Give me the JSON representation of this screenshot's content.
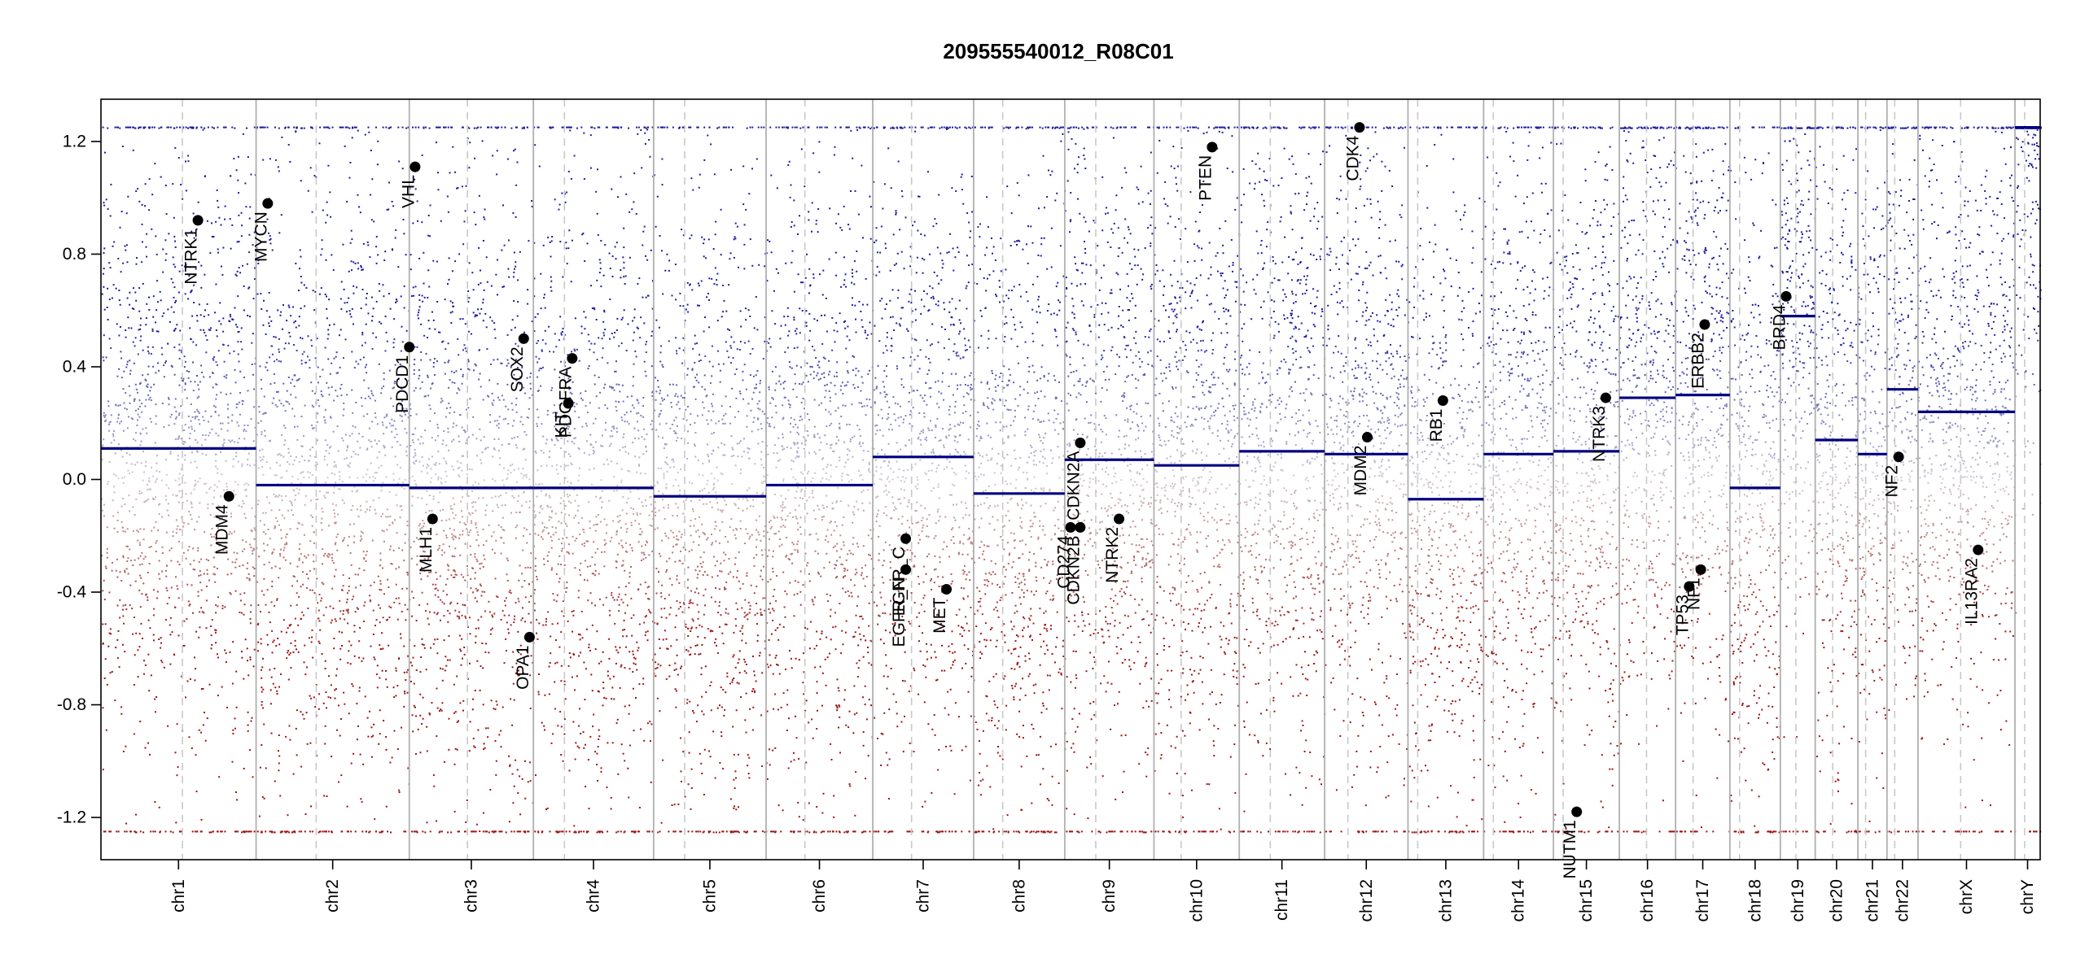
{
  "chart_data": {
    "type": "scatter",
    "title": "209555540012_R08C01",
    "xlabel": "",
    "ylabel": "",
    "ylim": [
      -1.35,
      1.35
    ],
    "y_ticks": [
      -1.2,
      -0.8,
      -0.4,
      0.0,
      0.4,
      0.8,
      1.2
    ],
    "y_tick_labels": [
      "-1.2",
      "-0.8",
      "-0.4",
      "0.0",
      "0.4",
      "0.8",
      "1.2"
    ],
    "clip_value": 1.25,
    "colors": {
      "gain": "#1a1aa0",
      "loss": "#9e1010",
      "segment": "#000080",
      "boundary": "#b0b0b0",
      "centromere": "#c8c8c8"
    },
    "chromosomes": [
      {
        "name": "chr1",
        "start": 0.0,
        "end": 0.08,
        "centromere": 0.042,
        "segment": 0.11
      },
      {
        "name": "chr2",
        "start": 0.08,
        "end": 0.159,
        "centromere": 0.111,
        "segment": -0.02
      },
      {
        "name": "chr3",
        "start": 0.159,
        "end": 0.223,
        "centromere": 0.189,
        "segment": -0.03
      },
      {
        "name": "chr4",
        "start": 0.223,
        "end": 0.285,
        "centromere": 0.239,
        "segment": -0.03
      },
      {
        "name": "chr5",
        "start": 0.285,
        "end": 0.343,
        "centromere": 0.301,
        "segment": -0.06
      },
      {
        "name": "chr6",
        "start": 0.343,
        "end": 0.398,
        "centromere": 0.363,
        "segment": -0.02
      },
      {
        "name": "chr7",
        "start": 0.398,
        "end": 0.45,
        "centromere": 0.418,
        "segment": 0.08
      },
      {
        "name": "chr8",
        "start": 0.45,
        "end": 0.497,
        "centromere": 0.465,
        "segment": -0.05
      },
      {
        "name": "chr9",
        "start": 0.497,
        "end": 0.543,
        "centromere": 0.513,
        "segment": 0.07
      },
      {
        "name": "chr10",
        "start": 0.543,
        "end": 0.587,
        "centromere": 0.557,
        "segment": 0.05
      },
      {
        "name": "chr11",
        "start": 0.587,
        "end": 0.631,
        "centromere": 0.603,
        "segment": 0.1
      },
      {
        "name": "chr12",
        "start": 0.631,
        "end": 0.674,
        "centromere": 0.643,
        "segment": 0.09
      },
      {
        "name": "chr13",
        "start": 0.674,
        "end": 0.713,
        "centromere": 0.679,
        "segment": -0.07
      },
      {
        "name": "chr14",
        "start": 0.713,
        "end": 0.749,
        "centromere": 0.718,
        "segment": 0.09
      },
      {
        "name": "chr15",
        "start": 0.749,
        "end": 0.783,
        "centromere": 0.754,
        "segment": 0.1
      },
      {
        "name": "chr16",
        "start": 0.783,
        "end": 0.812,
        "centromere": 0.797,
        "segment": 0.29
      },
      {
        "name": "chr17",
        "start": 0.812,
        "end": 0.84,
        "centromere": 0.821,
        "segment": 0.3
      },
      {
        "name": "chr18",
        "start": 0.84,
        "end": 0.866,
        "centromere": 0.845,
        "segment": -0.03
      },
      {
        "name": "chr19",
        "start": 0.866,
        "end": 0.884,
        "centromere": 0.874,
        "segment": 0.58
      },
      {
        "name": "chr20",
        "start": 0.884,
        "end": 0.906,
        "centromere": 0.893,
        "segment": 0.14
      },
      {
        "name": "chr21",
        "start": 0.906,
        "end": 0.921,
        "centromere": 0.91,
        "segment": 0.09
      },
      {
        "name": "chr22",
        "start": 0.921,
        "end": 0.937,
        "centromere": 0.925,
        "segment": 0.32
      },
      {
        "name": "chrX",
        "start": 0.937,
        "end": 0.987,
        "centromere": 0.959,
        "segment": 0.24
      },
      {
        "name": "chrY",
        "start": 0.987,
        "end": 1.0,
        "centromere": 0.992,
        "segment": 1.25
      }
    ],
    "genes": [
      {
        "name": "NTRK1",
        "x": 0.05,
        "y": 0.92
      },
      {
        "name": "MDM4",
        "x": 0.066,
        "y": -0.06
      },
      {
        "name": "MYCN",
        "x": 0.086,
        "y": 0.98
      },
      {
        "name": "PDCD1",
        "x": 0.159,
        "y": 0.47
      },
      {
        "name": "VHL",
        "x": 0.162,
        "y": 1.11
      },
      {
        "name": "MLH1",
        "x": 0.171,
        "y": -0.14
      },
      {
        "name": "SOX2",
        "x": 0.218,
        "y": 0.5
      },
      {
        "name": "OPA1",
        "x": 0.221,
        "y": -0.56
      },
      {
        "name": "KIT",
        "x": 0.241,
        "y": 0.27
      },
      {
        "name": "PDGFRA",
        "x": 0.243,
        "y": 0.43
      },
      {
        "name": "EGFR_C",
        "x": 0.415,
        "y": -0.21
      },
      {
        "name": "EGFR_N",
        "x": 0.415,
        "y": -0.32
      },
      {
        "name": "MET",
        "x": 0.436,
        "y": -0.39
      },
      {
        "name": "CD274",
        "x": 0.5,
        "y": -0.17
      },
      {
        "name": "CDKN2B",
        "x": 0.505,
        "y": -0.17
      },
      {
        "name": "CDKN2A",
        "x": 0.505,
        "y": 0.13
      },
      {
        "name": "NTRK2",
        "x": 0.525,
        "y": -0.14
      },
      {
        "name": "PTEN",
        "x": 0.573,
        "y": 1.18
      },
      {
        "name": "CDK4",
        "x": 0.649,
        "y": 1.25
      },
      {
        "name": "MDM2",
        "x": 0.653,
        "y": 0.15
      },
      {
        "name": "RB1",
        "x": 0.692,
        "y": 0.28
      },
      {
        "name": "NUTM1",
        "x": 0.761,
        "y": -1.18
      },
      {
        "name": "NTRK3",
        "x": 0.776,
        "y": 0.29
      },
      {
        "name": "TP53",
        "x": 0.819,
        "y": -0.38
      },
      {
        "name": "NF1",
        "x": 0.825,
        "y": -0.32
      },
      {
        "name": "ERBB2",
        "x": 0.827,
        "y": 0.55
      },
      {
        "name": "BRD4",
        "x": 0.869,
        "y": 0.65
      },
      {
        "name": "NF2",
        "x": 0.927,
        "y": 0.08
      },
      {
        "name": "IL13RA2",
        "x": 0.968,
        "y": -0.25
      }
    ]
  }
}
